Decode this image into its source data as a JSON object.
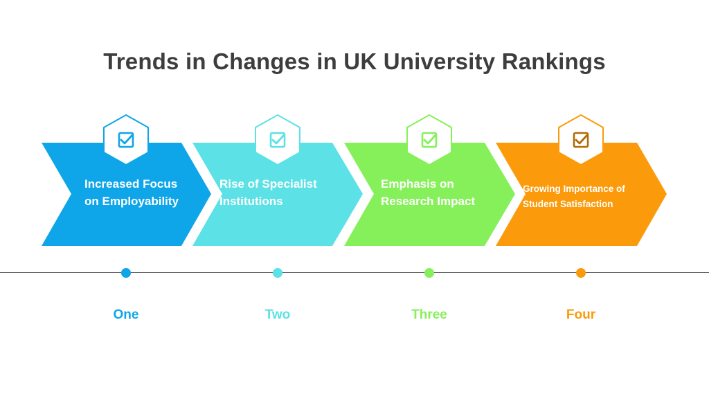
{
  "title": "Trends in Changes in UK University Rankings",
  "steps": [
    {
      "label": "One",
      "line1": "Increased Focus",
      "line2": "on Employability",
      "color": "#0ea5e9",
      "icon": "checkbox-icon"
    },
    {
      "label": "Two",
      "line1": "Rise of Specialist",
      "line2": "Institutions",
      "color": "#5ce1e6",
      "icon": "checkbox-icon"
    },
    {
      "label": "Three",
      "line1": "Emphasis on",
      "line2": "Research Impact",
      "color": "#86f05a",
      "icon": "checkbox-icon"
    },
    {
      "label": "Four",
      "line1": "Growing Importance of",
      "line2": "Student Satisfaction",
      "color": "#fb9a0a",
      "icon": "checkbox-icon"
    }
  ]
}
